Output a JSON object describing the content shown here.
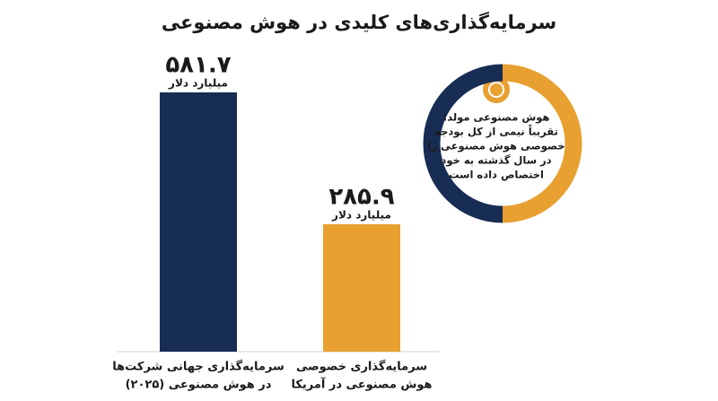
{
  "chart_data": {
    "type": "bar",
    "title": "سرمایه‌گذاری‌های کلیدی در هوش مصنوعی",
    "categories": [
      [
        "سرمایه‌گذاری جهانی شرکت‌ها",
        "در هوش مصنوعی (۲۰۲۵)"
      ],
      [
        "سرمایه‌گذاری خصوصی",
        "هوش مصنوعی در آمریکا"
      ]
    ],
    "values": [
      581.7,
      285.9
    ],
    "value_labels": [
      "۵۸۱.۷",
      "۲۸۵.۹"
    ],
    "value_unit": "میلیارد دلار",
    "colors": [
      "#172d54",
      "#e8a030"
    ],
    "donut": {
      "values": [
        50,
        50
      ],
      "colors": [
        "#e8a030",
        "#172d54"
      ],
      "note": [
        "هوش مصنوعی مولد:",
        "تقریباً نیمی از کل بودجه",
        "خصوصی هوش مصنوعی را",
        "در سال گذشته به خود",
        "اختصاص داده است"
      ]
    }
  }
}
